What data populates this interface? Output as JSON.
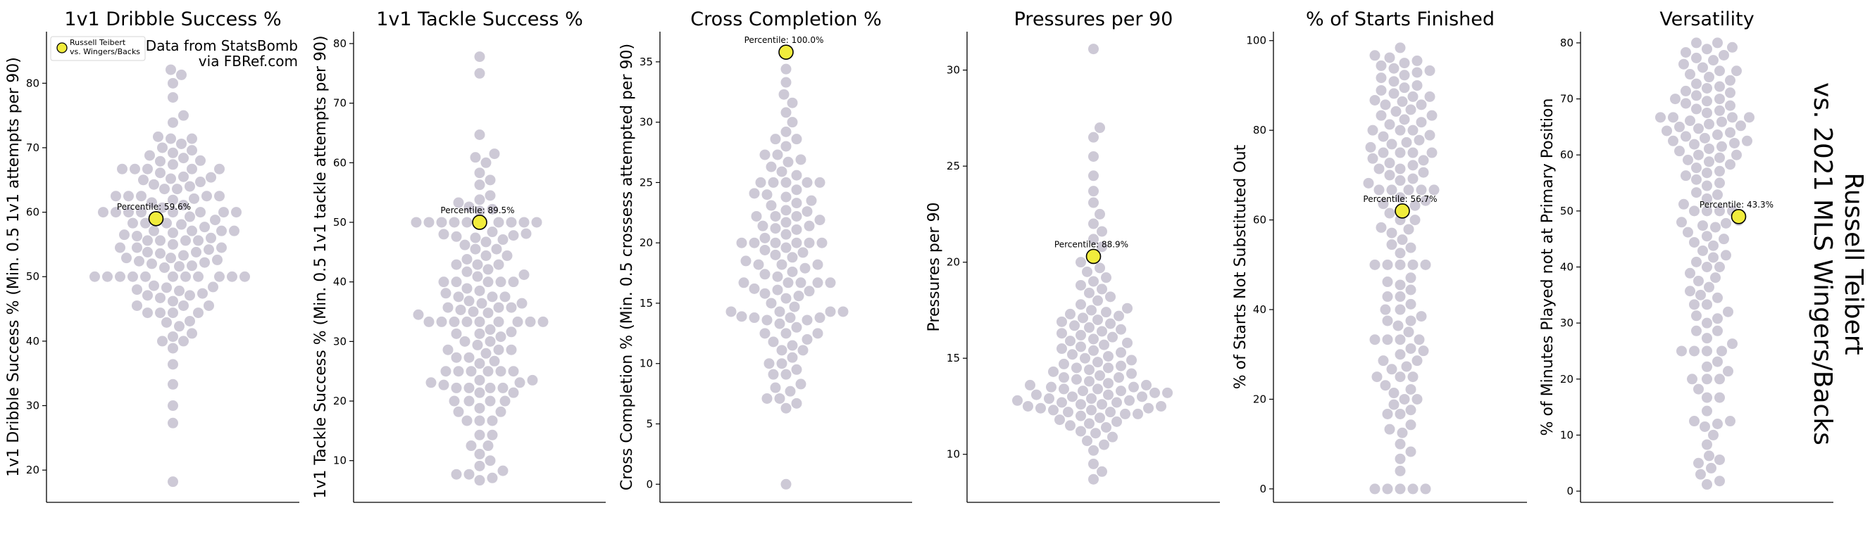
{
  "figure": {
    "source_line1": "Data from StatsBomb",
    "source_line2": "via FBRef.com",
    "side_title_line1": "Russell Teibert",
    "side_title_line2": "vs. 2021 MLS Wingers/Backs",
    "legend_line1": "Russell Teibert",
    "legend_line2": "vs. Wingers/Backs",
    "colors": {
      "others": "#cdc9d6",
      "player": "#f1ec3c",
      "player_edge": "#000000"
    }
  },
  "chart_data": [
    {
      "type": "scatter",
      "title": "1v1 Dribble Success %",
      "ylabel": "1v1 Dribble Success % (Min. 0.5 1v1 attempts per 90)",
      "ylim": [
        15,
        88
      ],
      "yticks": [
        20,
        30,
        40,
        50,
        60,
        70,
        80
      ],
      "highlight": {
        "value": 59.0,
        "label": "Percentile: 59.6%"
      },
      "values": [
        18.2,
        27.3,
        30.0,
        33.3,
        36.4,
        38.9,
        40.0,
        40.0,
        40.7,
        41.2,
        42.3,
        42.9,
        43.1,
        44.4,
        44.4,
        44.4,
        44.4,
        45.5,
        45.5,
        45.5,
        46.2,
        46.7,
        47.1,
        47.1,
        47.4,
        47.8,
        48.0,
        48.3,
        48.4,
        48.6,
        50.0,
        50.0,
        50.0,
        50.0,
        50.0,
        50.0,
        50.0,
        50.0,
        50.0,
        50.0,
        50.0,
        51.4,
        51.6,
        51.7,
        52.0,
        52.2,
        52.4,
        52.6,
        52.9,
        52.9,
        53.3,
        53.6,
        53.8,
        53.8,
        54.2,
        54.5,
        54.5,
        54.5,
        55.0,
        55.6,
        55.6,
        55.6,
        55.6,
        56.0,
        56.3,
        56.5,
        56.8,
        57.1,
        57.1,
        57.1,
        57.1,
        57.7,
        58.1,
        58.3,
        58.3,
        58.3,
        58.8,
        59.1,
        59.3,
        60.0,
        60.0,
        60.0,
        60.0,
        60.0,
        60.0,
        60.0,
        60.0,
        60.7,
        61.1,
        61.5,
        61.9,
        62.1,
        62.5,
        62.5,
        62.5,
        62.5,
        62.5,
        63.6,
        63.6,
        64.0,
        64.3,
        64.7,
        65.0,
        65.2,
        65.4,
        65.5,
        66.1,
        66.7,
        66.7,
        66.7,
        66.7,
        66.7,
        67.4,
        67.9,
        68.0,
        68.4,
        68.8,
        69.2,
        69.6,
        70.0,
        70.6,
        71.4,
        71.4,
        71.7,
        73.9,
        75.0,
        77.8,
        80.0,
        81.3,
        82.1
      ]
    },
    {
      "type": "scatter",
      "title": "1v1 Tackle Success %",
      "ylabel": "1v1 Tackle Success % (Min. 0.5 1v1 tackle attempts per 90)",
      "ylim": [
        3,
        82
      ],
      "yticks": [
        10,
        20,
        30,
        40,
        50,
        60,
        70,
        80
      ],
      "highlight": {
        "value": 50.0,
        "label": "Percentile: 89.5%"
      },
      "values": [
        6.7,
        7.1,
        7.7,
        7.7,
        8.3,
        9.1,
        10.0,
        11.1,
        12.5,
        12.5,
        14.3,
        14.3,
        16.7,
        16.7,
        16.7,
        18.2,
        18.2,
        18.8,
        20.0,
        20.0,
        20.0,
        20.0,
        21.4,
        21.4,
        22.2,
        22.2,
        22.2,
        22.2,
        22.7,
        23.1,
        23.1,
        23.5,
        23.5,
        25.0,
        25.0,
        25.0,
        25.0,
        25.0,
        25.0,
        26.3,
        26.7,
        27.3,
        27.3,
        28.0,
        28.6,
        28.6,
        28.6,
        29.4,
        30.0,
        30.0,
        30.8,
        31.3,
        31.3,
        31.6,
        32.0,
        33.3,
        33.3,
        33.3,
        33.3,
        33.3,
        33.3,
        33.3,
        33.3,
        33.3,
        34.5,
        34.8,
        35.0,
        35.3,
        35.7,
        35.7,
        35.7,
        36.4,
        36.4,
        36.8,
        37.5,
        37.5,
        37.5,
        38.1,
        38.5,
        38.9,
        40.0,
        40.0,
        40.0,
        40.0,
        40.0,
        40.9,
        41.2,
        41.7,
        42.1,
        42.9,
        42.9,
        42.9,
        43.8,
        44.4,
        44.4,
        45.5,
        45.5,
        46.2,
        46.7,
        47.1,
        47.4,
        47.6,
        47.8,
        48.0,
        48.1,
        48.4,
        50.0,
        50.0,
        50.0,
        50.0,
        50.0,
        50.0,
        50.0,
        50.0,
        50.0,
        50.0,
        51.9,
        52.2,
        52.6,
        53.3,
        53.8,
        54.5,
        56.3,
        57.1,
        58.3,
        60.0,
        60.9,
        61.5,
        64.7,
        75.0,
        77.8
      ]
    },
    {
      "type": "scatter",
      "title": "Cross Completion %",
      "ylabel": "Cross Completion % (Min. 0.5 crossess attempted per 90)",
      "ylim": [
        -1.5,
        37.5
      ],
      "yticks": [
        0,
        5,
        10,
        15,
        20,
        25,
        30,
        35
      ],
      "highlight": {
        "value": 35.8,
        "label": "Percentile: 100.0%"
      },
      "values": [
        0.0,
        6.3,
        6.7,
        7.1,
        7.1,
        7.7,
        8.0,
        8.3,
        9.1,
        9.1,
        9.5,
        10.0,
        10.0,
        10.5,
        11.1,
        11.1,
        11.5,
        11.8,
        12.0,
        12.5,
        12.5,
        12.5,
        13.0,
        13.3,
        13.6,
        13.6,
        13.8,
        13.8,
        13.8,
        13.9,
        14.3,
        14.3,
        14.3,
        14.3,
        14.7,
        15.0,
        15.4,
        15.6,
        15.8,
        16.0,
        16.1,
        16.2,
        16.7,
        16.7,
        16.7,
        16.7,
        16.7,
        17.2,
        17.4,
        17.6,
        17.9,
        18.2,
        18.2,
        18.2,
        18.5,
        18.8,
        19.0,
        19.2,
        19.4,
        19.6,
        20.0,
        20.0,
        20.0,
        20.0,
        20.0,
        20.0,
        20.4,
        20.7,
        21.1,
        21.2,
        21.4,
        21.4,
        21.7,
        21.9,
        22.2,
        22.2,
        22.2,
        22.6,
        22.7,
        23.1,
        23.3,
        23.5,
        23.8,
        24.0,
        24.1,
        24.4,
        25.0,
        25.0,
        25.0,
        25.0,
        25.0,
        25.6,
        25.9,
        26.3,
        26.7,
        26.9,
        27.3,
        27.3,
        28.0,
        28.6,
        28.6,
        29.2,
        30.0,
        30.8,
        31.6,
        32.3,
        33.3,
        34.4
      ]
    },
    {
      "type": "scatter",
      "title": "Pressures per 90",
      "ylabel": "Pressures per 90",
      "ylim": [
        7.5,
        32
      ],
      "yticks": [
        10,
        15,
        20,
        25,
        30
      ],
      "highlight": {
        "value": 20.3,
        "label": "Percentile: 88.9%"
      },
      "values": [
        8.7,
        9.1,
        9.5,
        10.2,
        10.5,
        10.7,
        10.9,
        11.1,
        11.2,
        11.4,
        11.5,
        11.6,
        11.7,
        11.8,
        11.9,
        12.0,
        12.1,
        12.1,
        12.2,
        12.2,
        12.3,
        12.3,
        12.4,
        12.4,
        12.5,
        12.5,
        12.6,
        12.6,
        12.7,
        12.7,
        12.8,
        12.8,
        12.9,
        12.9,
        13.0,
        13.0,
        13.1,
        13.1,
        13.2,
        13.2,
        13.3,
        13.3,
        13.4,
        13.4,
        13.5,
        13.5,
        13.6,
        13.6,
        13.7,
        13.8,
        13.9,
        14.0,
        14.0,
        14.1,
        14.2,
        14.3,
        14.4,
        14.5,
        14.5,
        14.6,
        14.7,
        14.8,
        14.9,
        15.0,
        15.1,
        15.2,
        15.3,
        15.4,
        15.5,
        15.6,
        15.7,
        15.8,
        15.9,
        16.0,
        16.1,
        16.2,
        16.3,
        16.4,
        16.5,
        16.6,
        16.7,
        16.8,
        16.9,
        17.0,
        17.1,
        17.2,
        17.3,
        17.4,
        17.5,
        17.6,
        17.8,
        18.0,
        18.2,
        18.4,
        18.6,
        18.8,
        19.0,
        19.2,
        19.5,
        19.7,
        20.0,
        20.4,
        20.8,
        21.2,
        21.6,
        22.0,
        22.5,
        23.1,
        23.7,
        24.5,
        25.5,
        26.5,
        27.0,
        31.1
      ]
    },
    {
      "type": "scatter",
      "title": "% of Starts Finished",
      "ylabel": "% of Starts Not Substituted Out",
      "ylim": [
        -3,
        102
      ],
      "yticks": [
        0,
        20,
        40,
        60,
        80,
        100
      ],
      "highlight": {
        "value": 62.0,
        "label": "Percentile: 56.7%"
      },
      "values": [
        0.0,
        0.0,
        0.0,
        0.0,
        0.0,
        4.0,
        6.7,
        8.3,
        10.0,
        12.5,
        13.3,
        14.3,
        16.7,
        16.7,
        17.6,
        18.8,
        20.0,
        20.0,
        21.4,
        22.2,
        23.1,
        25.0,
        25.0,
        25.0,
        26.7,
        27.3,
        28.6,
        28.6,
        30.0,
        30.8,
        31.3,
        33.3,
        33.3,
        33.3,
        33.3,
        35.0,
        36.4,
        37.5,
        37.5,
        38.5,
        40.0,
        40.0,
        41.2,
        42.9,
        42.9,
        44.4,
        45.5,
        46.2,
        47.1,
        50.0,
        50.0,
        50.0,
        50.0,
        50.0,
        52.6,
        53.8,
        54.5,
        55.6,
        57.1,
        57.9,
        58.3,
        60.0,
        60.0,
        61.5,
        62.5,
        63.2,
        63.6,
        64.3,
        65.0,
        66.7,
        66.7,
        66.7,
        66.7,
        66.7,
        68.2,
        68.8,
        69.2,
        70.0,
        70.6,
        71.4,
        71.4,
        72.2,
        72.7,
        73.3,
        73.7,
        75.0,
        75.0,
        75.0,
        75.0,
        76.2,
        76.9,
        77.3,
        77.8,
        78.6,
        78.9,
        80.0,
        80.0,
        80.0,
        81.3,
        81.8,
        82.4,
        83.3,
        83.3,
        84.2,
        84.6,
        85.7,
        85.7,
        86.4,
        86.7,
        87.5,
        87.5,
        88.2,
        88.9,
        89.5,
        90.0,
        90.9,
        91.7,
        92.3,
        92.9,
        93.3,
        93.8,
        94.4,
        95.0,
        95.5,
        96.2,
        96.7,
        98.4
      ]
    },
    {
      "type": "scatter",
      "title": "Versatility",
      "ylabel": "% of Minutes Played not at Primary Position",
      "ylim": [
        -2,
        82
      ],
      "yticks": [
        0,
        10,
        20,
        30,
        40,
        50,
        60,
        70,
        80
      ],
      "highlight": {
        "value": 49.0,
        "label": "Percentile: 43.3%"
      },
      "values": [
        1.2,
        1.8,
        3.0,
        4.1,
        5.0,
        5.6,
        6.3,
        8.3,
        10.0,
        11.5,
        12.0,
        12.5,
        12.5,
        14.3,
        16.7,
        16.7,
        18.2,
        20.0,
        20.0,
        20.0,
        21.4,
        22.2,
        23.1,
        25.0,
        25.0,
        25.0,
        25.0,
        26.3,
        27.3,
        28.6,
        28.6,
        30.0,
        30.8,
        31.3,
        32.0,
        33.3,
        33.3,
        34.5,
        35.0,
        35.7,
        36.4,
        37.5,
        38.1,
        38.9,
        40.0,
        40.0,
        40.9,
        41.7,
        42.1,
        42.9,
        43.8,
        44.4,
        45.0,
        45.5,
        46.2,
        47.1,
        47.4,
        47.8,
        48.0,
        48.3,
        50.0,
        50.0,
        50.0,
        50.0,
        51.2,
        52.2,
        52.9,
        53.3,
        54.5,
        55.0,
        55.6,
        56.3,
        56.8,
        57.1,
        57.7,
        58.3,
        58.8,
        59.1,
        59.5,
        60.0,
        60.0,
        60.7,
        61.1,
        61.5,
        61.9,
        62.1,
        62.5,
        62.5,
        63.0,
        63.3,
        63.6,
        64.0,
        64.3,
        64.7,
        65.0,
        65.2,
        65.5,
        65.9,
        66.1,
        66.7,
        66.7,
        66.7,
        66.7,
        67.5,
        67.9,
        68.2,
        68.8,
        69.2,
        69.6,
        70.0,
        70.0,
        70.6,
        71.1,
        71.4,
        71.9,
        72.2,
        72.7,
        73.3,
        73.9,
        74.4,
        75.0,
        75.0,
        75.6,
        76.2,
        76.9,
        77.3,
        77.8,
        78.3,
        78.9,
        79.2,
        80.0,
        80.0
      ]
    }
  ]
}
